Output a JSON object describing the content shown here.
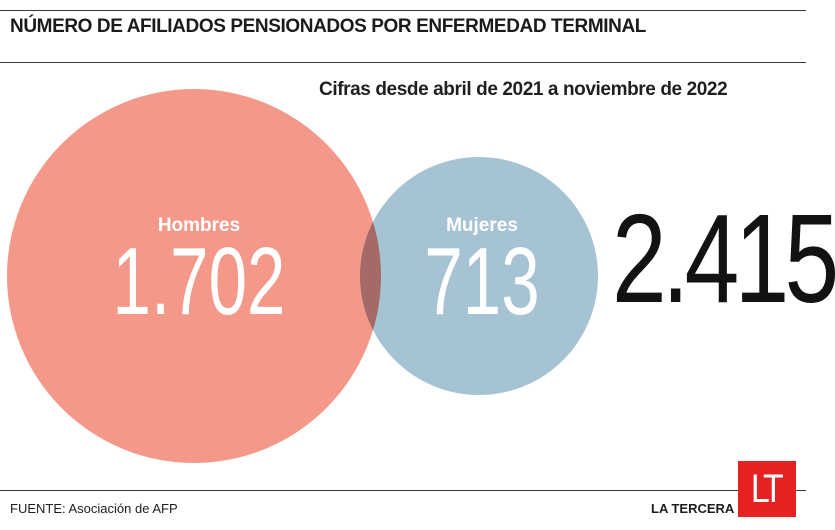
{
  "title": "NÚMERO DE AFILIADOS PENSIONADOS POR ENFERMEDAD TERMINAL",
  "subtitle": "Cifras desde abril de 2021 a noviembre de 2022",
  "chart_data": {
    "type": "bubble",
    "series": [
      {
        "name": "Hombres",
        "value": 1702,
        "value_label": "1.702",
        "color": "#f4988a"
      },
      {
        "name": "Mujeres",
        "value": 713,
        "value_label": "713",
        "color": "#a6c3d4"
      }
    ],
    "overlap_color": "#a46a67",
    "total": 2415,
    "total_label": "2.415"
  },
  "source": "FUENTE: Asociación de AFP",
  "brand": "LA TERCERA",
  "logo_text": "LT",
  "colors": {
    "logo_bg": "#e52222"
  }
}
